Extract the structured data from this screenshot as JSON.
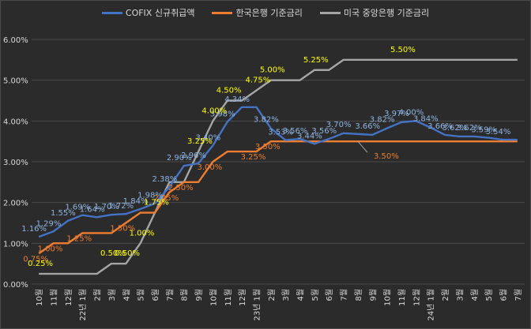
{
  "chart_data": {
    "type": "line",
    "title": "",
    "xlabel": "",
    "ylabel": "",
    "ylim": [
      0,
      6
    ],
    "yticks": [
      "0.00%",
      "1.00%",
      "2.00%",
      "3.00%",
      "4.00%",
      "5.00%",
      "6.00%"
    ],
    "grid": true,
    "legend_position": "top",
    "x_tick_labels": [
      "10월",
      "11월",
      "12월",
      "22년 1월",
      "2월",
      "3월",
      "4월",
      "5월",
      "6월",
      "7월",
      "8월",
      "9월",
      "10월",
      "11월",
      "12월",
      "23년 1월",
      "2월",
      "3월",
      "4월",
      "5월",
      "6월",
      "7월",
      "8월",
      "9월",
      "10월",
      "11월",
      "12월",
      "24년 1월",
      "2월",
      "3월",
      "4월",
      "5월",
      "6월",
      "7월"
    ],
    "series": [
      {
        "name": "COFIX 신규취급액",
        "color": "#4472c4",
        "label_color": "#8eb4e3",
        "values": [
          1.16,
          1.29,
          1.55,
          1.69,
          1.64,
          1.7,
          1.72,
          1.84,
          1.98,
          2.38,
          2.9,
          2.96,
          3.4,
          3.98,
          4.34,
          4.34,
          3.82,
          3.53,
          3.56,
          3.44,
          3.56,
          3.7,
          3.68,
          3.66,
          3.82,
          3.97,
          4.0,
          3.84,
          3.66,
          3.62,
          3.62,
          3.59,
          3.54,
          3.54
        ],
        "labels": [
          "1.16%",
          "1.29%",
          "1.55%",
          "1.69%",
          "1.64%",
          "1.70%",
          "1.72%",
          "1.84%",
          "1.98%",
          "2.38%",
          "2.90%",
          "2.96%",
          "3.40%",
          "3.98%",
          "4.34%",
          "",
          "3.82%",
          "3.53%",
          "3.56%",
          "3.44%",
          "3.56%",
          "3.70%",
          "",
          "3.66%",
          "3.82%",
          "3.97%",
          "4.00%",
          "3.84%",
          "3.66%",
          "3.62%",
          "3.62%",
          "3.59%",
          "3.54%",
          ""
        ]
      },
      {
        "name": "한국은행 기준금리",
        "color": "#ed7d31",
        "label_color": "#ed7d31",
        "values": [
          0.75,
          1.0,
          1.0,
          1.25,
          1.25,
          1.25,
          1.5,
          1.75,
          1.75,
          2.25,
          2.5,
          2.5,
          3.0,
          3.25,
          3.25,
          3.25,
          3.5,
          3.5,
          3.5,
          3.5,
          3.5,
          3.5,
          3.5,
          3.5,
          3.5,
          3.5,
          3.5,
          3.5,
          3.5,
          3.5,
          3.5,
          3.5,
          3.5,
          3.5
        ],
        "labels": [
          "0.75%",
          "1.00%",
          "",
          "1.25%",
          "",
          "",
          "1.50%",
          "",
          "",
          "2.25%",
          "2.50%",
          "",
          "3.00%",
          "",
          "",
          "3.25%",
          "3.50%",
          "",
          "",
          "",
          "",
          "",
          "",
          "",
          "",
          "",
          "",
          "",
          "",
          "",
          "",
          "",
          "",
          ""
        ],
        "extra_label": "3.50%"
      },
      {
        "name": "미국 중앙은행 기준금리",
        "color": "#a5a5a5",
        "label_color": "#ffff00",
        "values": [
          0.25,
          0.25,
          0.25,
          0.25,
          0.25,
          0.5,
          0.5,
          1.0,
          1.75,
          2.5,
          2.5,
          3.25,
          4.0,
          4.5,
          4.5,
          4.75,
          5.0,
          5.0,
          5.0,
          5.25,
          5.25,
          5.5,
          5.5,
          5.5,
          5.5,
          5.5,
          5.5,
          5.5,
          5.5,
          5.5,
          5.5,
          5.5,
          5.5,
          5.5
        ],
        "labels": [
          "0.25%",
          "",
          "",
          "",
          "",
          "0.50%",
          "0.50%",
          "1.00%",
          "1.75%",
          "",
          "",
          "3.25%",
          "4.00%",
          "4.50%",
          "",
          "4.75%",
          "5.00%",
          "",
          "",
          "5.25%",
          "",
          "",
          "",
          "",
          "",
          "5.50%",
          "",
          "",
          "",
          "",
          "",
          "",
          "",
          ""
        ]
      }
    ]
  }
}
